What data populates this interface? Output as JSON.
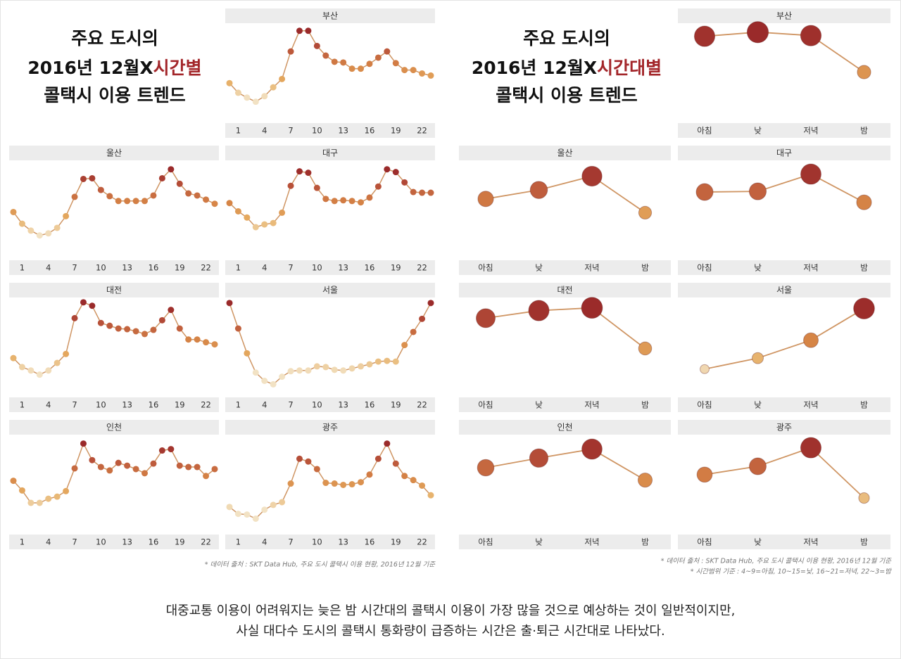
{
  "left_title": {
    "line1": "주요 도시의",
    "line2a": "2016년 12월X",
    "line2b": "시간별",
    "line3": "콜택시 이용 트렌드"
  },
  "right_title": {
    "line1": "주요 도시의",
    "line2a": "2016년 12월X",
    "line2b": "시간대별",
    "line3": "콜택시 이용 트렌드"
  },
  "left_note": "* 데이터 출처 : SKT Data Hub, 주요 도시 콜택시 이용 현황, 2016년 12월 기준",
  "right_notes": [
    "* 데이터 출처 : SKT Data Hub, 주요 도시 콜택시 이용 현황, 2016년 12월 기준",
    "* 시간범위 기준 : 4~9=아침, 10~15=낮, 16~21=저녁, 22~3=밤"
  ],
  "caption": [
    "대중교통 이용이 어려워지는 늦은 밤 시간대의 콜택시 이용이 가장 많을 것으로 예상하는 것이 일반적이지만,",
    "사실 대다수 도시의 콜택시 통화량이 급증하는 시간은 출·퇴근 시간대로 나타났다."
  ],
  "color_scale": [
    "#f2e2c4",
    "#e6ad62",
    "#d68446",
    "#b9533a",
    "#9a2a2a"
  ],
  "line_color": "#cf9563",
  "chart_data": [
    {
      "type": "line",
      "title": "부산",
      "x": [
        0,
        1,
        2,
        3,
        4,
        5,
        6,
        7,
        8,
        9,
        10,
        11,
        12,
        13,
        14,
        15,
        16,
        17,
        18,
        19,
        20,
        21,
        22,
        23
      ],
      "xlim": [
        0,
        23
      ],
      "xticks": [
        1,
        4,
        7,
        10,
        13,
        16,
        19,
        22
      ],
      "ylim": [
        0,
        145
      ],
      "values": [
        58,
        44,
        37,
        31,
        39,
        52,
        64,
        104,
        134,
        134,
        112,
        98,
        89,
        88,
        79,
        79,
        86,
        95,
        104,
        87,
        77,
        77,
        72,
        69
      ]
    },
    {
      "type": "line",
      "title": "울산",
      "x": [
        0,
        1,
        2,
        3,
        4,
        5,
        6,
        7,
        8,
        9,
        10,
        11,
        12,
        13,
        14,
        15,
        16,
        17,
        18,
        19,
        20,
        21,
        22,
        23
      ],
      "xlim": [
        0,
        23
      ],
      "xticks": [
        1,
        4,
        7,
        10,
        13,
        16,
        19,
        22
      ],
      "ylim": [
        0,
        145
      ],
      "values": [
        70,
        53,
        43,
        36,
        39,
        47,
        64,
        92,
        118,
        119,
        102,
        93,
        86,
        86,
        86,
        86,
        94,
        119,
        132,
        111,
        97,
        94,
        88,
        82
      ]
    },
    {
      "type": "line",
      "title": "대구",
      "x": [
        0,
        1,
        2,
        3,
        4,
        5,
        6,
        7,
        8,
        9,
        10,
        11,
        12,
        13,
        14,
        15,
        16,
        17,
        18,
        19,
        20,
        21,
        22,
        23
      ],
      "xlim": [
        0,
        23
      ],
      "xticks": [
        1,
        4,
        7,
        10,
        13,
        16,
        19,
        22
      ],
      "ylim": [
        0,
        145
      ],
      "values": [
        83,
        71,
        62,
        48,
        52,
        54,
        69,
        108,
        129,
        127,
        105,
        89,
        86,
        87,
        86,
        84,
        91,
        107,
        132,
        128,
        113,
        99,
        98,
        98
      ]
    },
    {
      "type": "line",
      "title": "대전",
      "x": [
        0,
        1,
        2,
        3,
        4,
        5,
        6,
        7,
        8,
        9,
        10,
        11,
        12,
        13,
        14,
        15,
        16,
        17,
        18,
        19,
        20,
        21,
        22,
        23
      ],
      "xlim": [
        0,
        23
      ],
      "xticks": [
        1,
        4,
        7,
        10,
        13,
        16,
        19,
        22
      ],
      "ylim": [
        0,
        145
      ],
      "values": [
        57,
        44,
        39,
        33,
        39,
        50,
        63,
        115,
        138,
        133,
        108,
        104,
        100,
        99,
        96,
        92,
        98,
        112,
        127,
        100,
        84,
        84,
        80,
        77
      ]
    },
    {
      "type": "line",
      "title": "서울",
      "x": [
        0,
        1,
        2,
        3,
        4,
        5,
        6,
        7,
        8,
        9,
        10,
        11,
        12,
        13,
        14,
        15,
        16,
        17,
        18,
        19,
        20,
        21,
        22,
        23
      ],
      "xlim": [
        0,
        23
      ],
      "xticks": [
        1,
        4,
        7,
        10,
        13,
        16,
        19,
        22
      ],
      "ylim": [
        0,
        145
      ],
      "values": [
        137,
        100,
        64,
        36,
        24,
        19,
        30,
        38,
        39,
        39,
        45,
        44,
        40,
        39,
        42,
        45,
        48,
        52,
        53,
        52,
        76,
        95,
        114,
        137
      ]
    },
    {
      "type": "line",
      "title": "인천",
      "x": [
        0,
        1,
        2,
        3,
        4,
        5,
        6,
        7,
        8,
        9,
        10,
        11,
        12,
        13,
        14,
        15,
        16,
        17,
        18,
        19,
        20,
        21,
        22,
        23
      ],
      "xlim": [
        0,
        23
      ],
      "xticks": [
        1,
        4,
        7,
        10,
        13,
        16,
        19,
        22
      ],
      "ylim": [
        0,
        145
      ],
      "values": [
        78,
        64,
        46,
        46,
        52,
        55,
        63,
        96,
        132,
        108,
        98,
        93,
        104,
        100,
        95,
        89,
        103,
        122,
        124,
        100,
        98,
        98,
        85,
        95
      ]
    },
    {
      "type": "line",
      "title": "광주",
      "x": [
        0,
        1,
        2,
        3,
        4,
        5,
        6,
        7,
        8,
        9,
        10,
        11,
        12,
        13,
        14,
        15,
        16,
        17,
        18,
        19,
        20,
        21,
        22,
        23
      ],
      "xlim": [
        0,
        23
      ],
      "xticks": [
        1,
        4,
        7,
        10,
        13,
        16,
        19,
        22
      ],
      "ylim": [
        0,
        145
      ],
      "values": [
        40,
        30,
        29,
        23,
        36,
        43,
        47,
        74,
        110,
        106,
        95,
        75,
        74,
        72,
        73,
        76,
        87,
        110,
        132,
        103,
        85,
        79,
        71,
        57
      ]
    },
    {
      "type": "line",
      "title": "부산",
      "categories": [
        "아침",
        "낮",
        "저녁",
        "밤"
      ],
      "ylim": [
        0,
        145
      ],
      "values": [
        126,
        132,
        127,
        74
      ]
    },
    {
      "type": "line",
      "title": "울산",
      "categories": [
        "아침",
        "낮",
        "저녁",
        "밤"
      ],
      "ylim": [
        0,
        145
      ],
      "values": [
        89,
        102,
        122,
        69
      ]
    },
    {
      "type": "line",
      "title": "대구",
      "categories": [
        "아침",
        "낮",
        "저녁",
        "밤"
      ],
      "ylim": [
        0,
        145
      ],
      "values": [
        99,
        100,
        125,
        84
      ]
    },
    {
      "type": "line",
      "title": "대전",
      "categories": [
        "아침",
        "낮",
        "저녁",
        "밤"
      ],
      "ylim": [
        0,
        145
      ],
      "values": [
        115,
        126,
        130,
        71
      ]
    },
    {
      "type": "line",
      "title": "서울",
      "categories": [
        "아침",
        "낮",
        "저녁",
        "밤"
      ],
      "ylim": [
        0,
        145
      ],
      "values": [
        41,
        57,
        83,
        129
      ]
    },
    {
      "type": "line",
      "title": "인천",
      "categories": [
        "아침",
        "낮",
        "저녁",
        "밤"
      ],
      "ylim": [
        0,
        145
      ],
      "values": [
        97,
        111,
        124,
        79
      ]
    },
    {
      "type": "line",
      "title": "광주",
      "categories": [
        "아침",
        "낮",
        "저녁",
        "밤"
      ],
      "ylim": [
        0,
        145
      ],
      "values": [
        87,
        99,
        126,
        53
      ]
    }
  ]
}
